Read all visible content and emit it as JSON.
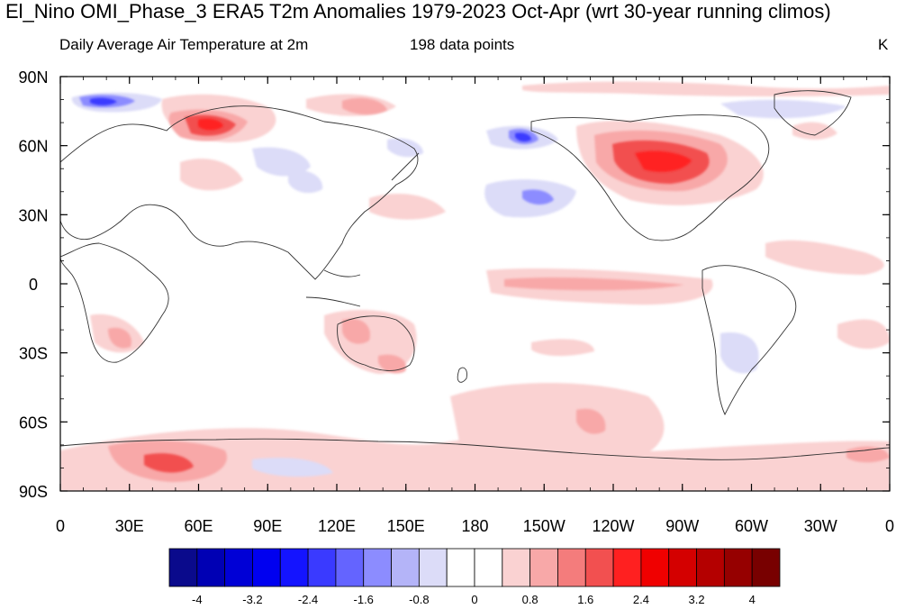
{
  "title": "El_Nino OMI_Phase_3 ERA5 T2m Anomalies 1979-2023 Oct-Apr (wrt 30-year running climos)",
  "left_string": "Daily Average Air Temperature at 2m",
  "center_string": "198 data points",
  "units": "K",
  "lat_labels": [
    "90N",
    "60N",
    "30N",
    "0",
    "30S",
    "60S",
    "90S"
  ],
  "lon_labels": [
    "0",
    "30E",
    "60E",
    "90E",
    "120E",
    "150E",
    "180",
    "150W",
    "120W",
    "90W",
    "60W",
    "30W",
    "0"
  ],
  "colorbar": {
    "labels": [
      "-4",
      "-3.2",
      "-2.4",
      "-1.6",
      "-0.8",
      "0",
      "0.8",
      "1.6",
      "2.4",
      "3.2",
      "4"
    ],
    "colors": [
      "#0a0a8c",
      "#0000b4",
      "#0000d6",
      "#0000f0",
      "#1414ff",
      "#3a3aff",
      "#6464ff",
      "#8c8cff",
      "#b4b4f8",
      "#dcdcf8",
      "#ffffff",
      "#ffffff",
      "#fad2d2",
      "#f8a8a8",
      "#f47c7c",
      "#f25050",
      "#ff2020",
      "#f00000",
      "#d40000",
      "#b40000",
      "#960000",
      "#780000"
    ]
  }
}
